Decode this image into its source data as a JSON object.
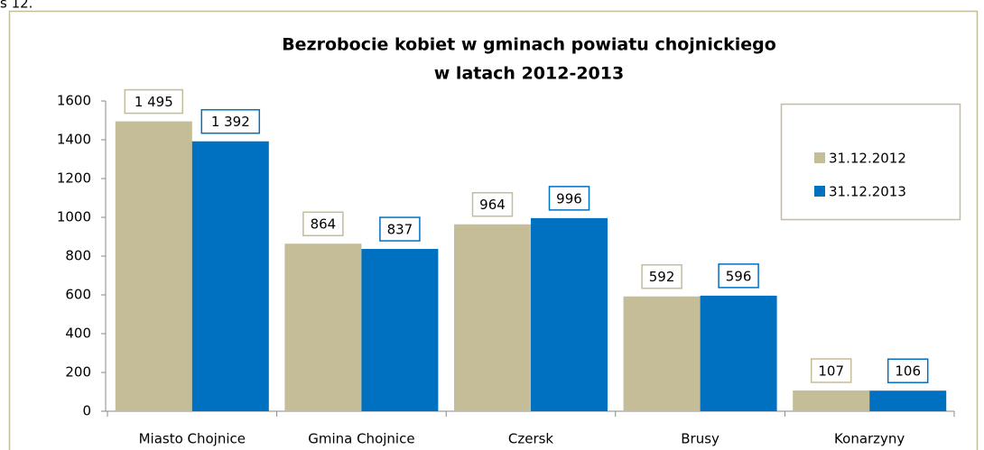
{
  "chart_data": {
    "type": "bar",
    "caption": "s 12.",
    "title": [
      "Bezrobocie kobiet w gminach powiatu chojnickiego",
      "w latach 2012-2013"
    ],
    "categories": [
      "Miasto Chojnice",
      "Gmina Chojnice",
      "Czersk",
      "Brusy",
      "Konarzyny"
    ],
    "series": [
      {
        "name": "31.12.2012",
        "color": "#c4bd97",
        "values": [
          1495,
          864,
          964,
          592,
          107
        ],
        "value_labels": [
          "1 495",
          "864",
          "964",
          "592",
          "107"
        ]
      },
      {
        "name": "31.12.2013",
        "color": "#0070c0",
        "values": [
          1392,
          837,
          996,
          596,
          106
        ],
        "value_labels": [
          "1 392",
          "837",
          "996",
          "596",
          "106"
        ]
      }
    ],
    "ylim": [
      0,
      1600
    ],
    "yticks": [
      0,
      200,
      400,
      600,
      800,
      1000,
      1200,
      1400,
      1600
    ],
    "grid": false,
    "legend": "right"
  }
}
